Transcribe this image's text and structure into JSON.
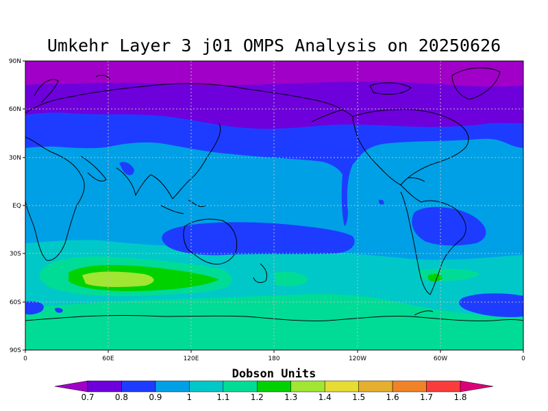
{
  "title": "Umkehr Layer 3 j01 OMPS Analysis on 20250626",
  "colorbar_title": "Dobson Units",
  "chart_data": {
    "type": "heatmap",
    "y_ticks": [
      "90N",
      "60N",
      "30N",
      "EQ",
      "30S",
      "60S",
      "90S"
    ],
    "x_ticks": [
      "0",
      "60E",
      "120E",
      "180",
      "120W",
      "60W",
      "0"
    ],
    "colorbar_labels": [
      "0.7",
      "0.8",
      "0.9",
      "1",
      "1.1",
      "1.2",
      "1.3",
      "1.4",
      "1.5",
      "1.6",
      "1.7",
      "1.8"
    ],
    "colorbar_colors": [
      "#a000c8",
      "#6e00dc",
      "#1e3cff",
      "#00a0e6",
      "#00c8c8",
      "#00dc96",
      "#00d200",
      "#a0e632",
      "#e6dc32",
      "#e6af2d",
      "#f08228",
      "#fa3c3c",
      "#dc0078"
    ],
    "grid": true,
    "bands": [
      {
        "lat_range": "90N-70N",
        "value_range": "<0.7"
      },
      {
        "lat_range": "70N-55N",
        "value_range": "0.7-0.8"
      },
      {
        "lat_range": "55N-35N",
        "value_range": "0.8-0.9"
      },
      {
        "lat_range": "35N-30S",
        "value_range": "0.9-1.0"
      },
      {
        "lat_range": "30S-55S",
        "value_range": "1.0-1.1"
      },
      {
        "lat_range": "55S-90S",
        "value_range": "1.1-1.2"
      }
    ]
  }
}
